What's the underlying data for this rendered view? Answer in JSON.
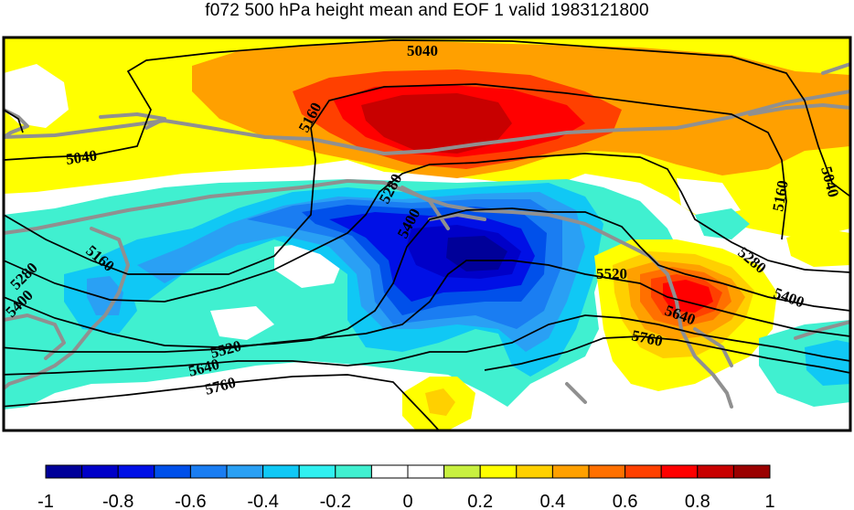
{
  "title": "f072 500 hPa height mean and EOF 1 valid 1983121800",
  "contour_labels": [
    "5040",
    "5160",
    "5280",
    "5400",
    "5520",
    "5640",
    "5760",
    "5040",
    "5160",
    "5280",
    "5400",
    "5040",
    "5160",
    "5280",
    "5400",
    "5520",
    "5640",
    "5760"
  ],
  "colorbar": {
    "colors": [
      "#000099",
      "#0000c8",
      "#0010e6",
      "#0050ea",
      "#1a7df2",
      "#2aa0f4",
      "#10c8f5",
      "#30f0f0",
      "#40f0d0",
      "#ffffff",
      "#ffffff",
      "#c8f040",
      "#ffff00",
      "#ffd000",
      "#ffa000",
      "#ff7000",
      "#ff4000",
      "#ff0000",
      "#c80000",
      "#9a0000"
    ],
    "tick_labels": [
      "-1",
      "-0.8",
      "-0.6",
      "-0.4",
      "-0.2",
      "0",
      "0.2",
      "0.4",
      "0.6",
      "0.8",
      "1"
    ]
  }
}
